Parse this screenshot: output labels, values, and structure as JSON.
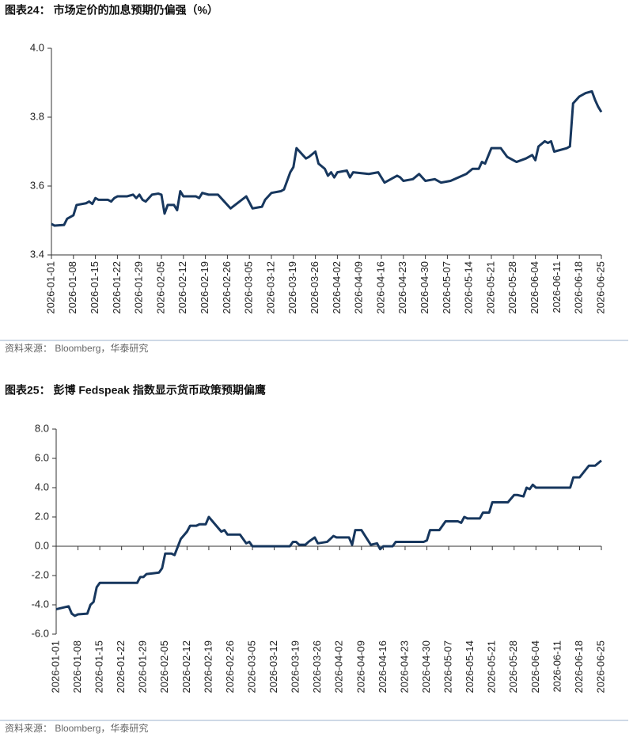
{
  "chart_data": [
    {
      "type": "line",
      "title": "图表24：  市场定价的加息预期仍偏强（%）",
      "source": "资料来源：  Bloomberg，华泰研究",
      "x": [
        "2026-01-01",
        "2026-01-02",
        "2026-01-05",
        "2026-01-06",
        "2026-01-08",
        "2026-01-09",
        "2026-01-12",
        "2026-01-13",
        "2026-01-14",
        "2026-01-15",
        "2026-01-16",
        "2026-01-19",
        "2026-01-20",
        "2026-01-21",
        "2026-01-22",
        "2026-01-25",
        "2026-01-27",
        "2026-01-28",
        "2026-01-29",
        "2026-01-30",
        "2026-01-31",
        "2026-02-02",
        "2026-02-04",
        "2026-02-05",
        "2026-02-06",
        "2026-02-07",
        "2026-02-09",
        "2026-02-10",
        "2026-02-11",
        "2026-02-12",
        "2026-02-16",
        "2026-02-17",
        "2026-02-18",
        "2026-02-20",
        "2026-02-23",
        "2026-02-25",
        "2026-02-27",
        "2026-03-04",
        "2026-03-06",
        "2026-03-09",
        "2026-03-10",
        "2026-03-12",
        "2026-03-15",
        "2026-03-16",
        "2026-03-18",
        "2026-03-19",
        "2026-03-20",
        "2026-03-22",
        "2026-03-23",
        "2026-03-24",
        "2026-03-26",
        "2026-03-27",
        "2026-03-29",
        "2026-03-30",
        "2026-03-31",
        "2026-04-01",
        "2026-04-02",
        "2026-04-05",
        "2026-04-06",
        "2026-04-07",
        "2026-04-12",
        "2026-04-15",
        "2026-04-17",
        "2026-04-21",
        "2026-04-22",
        "2026-04-23",
        "2026-04-26",
        "2026-04-28",
        "2026-04-30",
        "2026-05-03",
        "2026-05-05",
        "2026-05-08",
        "2026-05-13",
        "2026-05-15",
        "2026-05-17",
        "2026-05-18",
        "2026-05-19",
        "2026-05-21",
        "2026-05-24",
        "2026-05-26",
        "2026-05-28",
        "2026-05-29",
        "2026-06-01",
        "2026-06-03",
        "2026-06-04",
        "2026-06-05",
        "2026-06-07",
        "2026-06-08",
        "2026-06-09",
        "2026-06-10",
        "2026-06-14",
        "2026-06-15",
        "2026-06-16",
        "2026-06-18",
        "2026-06-20",
        "2026-06-22",
        "2026-06-23",
        "2026-06-24",
        "2026-06-25"
      ],
      "values": [
        3.49,
        3.485,
        3.487,
        3.505,
        3.515,
        3.545,
        3.55,
        3.555,
        3.548,
        3.565,
        3.56,
        3.56,
        3.555,
        3.565,
        3.57,
        3.57,
        3.575,
        3.565,
        3.575,
        3.56,
        3.555,
        3.575,
        3.578,
        3.575,
        3.52,
        3.545,
        3.545,
        3.53,
        3.585,
        3.57,
        3.57,
        3.565,
        3.58,
        3.575,
        3.575,
        3.555,
        3.535,
        3.57,
        3.535,
        3.54,
        3.56,
        3.58,
        3.585,
        3.59,
        3.64,
        3.655,
        3.71,
        3.69,
        3.68,
        3.685,
        3.7,
        3.665,
        3.65,
        3.63,
        3.64,
        3.625,
        3.64,
        3.645,
        3.625,
        3.64,
        3.635,
        3.64,
        3.61,
        3.63,
        3.625,
        3.615,
        3.62,
        3.635,
        3.615,
        3.62,
        3.61,
        3.615,
        3.635,
        3.65,
        3.65,
        3.67,
        3.665,
        3.71,
        3.71,
        3.685,
        3.675,
        3.67,
        3.68,
        3.69,
        3.675,
        3.715,
        3.73,
        3.725,
        3.73,
        3.7,
        3.71,
        3.715,
        3.84,
        3.86,
        3.87,
        3.875,
        3.85,
        3.83,
        3.815
      ],
      "color": "#17375e",
      "xlim": [
        "2026-01-01",
        "2026-06-25"
      ],
      "xticks": [
        "2026-01-01",
        "2026-01-08",
        "2026-01-15",
        "2026-01-22",
        "2026-01-29",
        "2026-02-05",
        "2026-02-12",
        "2026-02-19",
        "2026-02-26",
        "2026-03-05",
        "2026-03-12",
        "2026-03-19",
        "2026-03-26",
        "2026-04-02",
        "2026-04-09",
        "2026-04-16",
        "2026-04-23",
        "2026-04-30",
        "2026-05-07",
        "2026-05-14",
        "2026-05-21",
        "2026-05-28",
        "2026-06-04",
        "2026-06-11",
        "2026-06-18",
        "2026-06-25"
      ],
      "ylim": [
        3.4,
        4.0
      ],
      "yticks": [
        {
          "value": 3.4,
          "label": "3.4"
        },
        {
          "value": 3.6,
          "label": "3.6"
        },
        {
          "value": 3.8,
          "label": "3.8"
        },
        {
          "value": 4.0,
          "label": "4.0"
        }
      ]
    },
    {
      "type": "line",
      "title": "图表25：  彭博 Fedspeak 指数显示货币政策预期偏鹰",
      "source": "资料来源：  Bloomberg，华泰研究",
      "x": [
        "2026-01-01",
        "2026-01-05",
        "2026-01-06",
        "2026-01-07",
        "2026-01-08",
        "2026-01-11",
        "2026-01-12",
        "2026-01-13",
        "2026-01-14",
        "2026-01-15",
        "2026-01-27",
        "2026-01-28",
        "2026-01-29",
        "2026-01-30",
        "2026-02-01",
        "2026-02-03",
        "2026-02-04",
        "2026-02-05",
        "2026-02-07",
        "2026-02-08",
        "2026-02-10",
        "2026-02-12",
        "2026-02-13",
        "2026-02-15",
        "2026-02-16",
        "2026-02-18",
        "2026-02-19",
        "2026-02-21",
        "2026-02-23",
        "2026-02-24",
        "2026-02-25",
        "2026-03-01",
        "2026-03-03",
        "2026-03-04",
        "2026-03-05",
        "2026-03-17",
        "2026-03-18",
        "2026-03-19",
        "2026-03-20",
        "2026-03-22",
        "2026-03-23",
        "2026-03-25",
        "2026-03-26",
        "2026-03-29",
        "2026-03-31",
        "2026-04-01",
        "2026-04-05",
        "2026-04-06",
        "2026-04-07",
        "2026-04-09",
        "2026-04-12",
        "2026-04-14",
        "2026-04-15",
        "2026-04-16",
        "2026-04-19",
        "2026-04-20",
        "2026-04-29",
        "2026-04-30",
        "2026-05-01",
        "2026-05-04",
        "2026-05-06",
        "2026-05-10",
        "2026-05-11",
        "2026-05-12",
        "2026-05-13",
        "2026-05-17",
        "2026-05-18",
        "2026-05-20",
        "2026-05-21",
        "2026-05-26",
        "2026-05-28",
        "2026-05-29",
        "2026-05-31",
        "2026-06-01",
        "2026-06-02",
        "2026-06-03",
        "2026-06-04",
        "2026-06-15",
        "2026-06-16",
        "2026-06-18",
        "2026-06-21",
        "2026-06-23",
        "2026-06-25"
      ],
      "values": [
        -4.3,
        -4.1,
        -4.6,
        -4.75,
        -4.65,
        -4.6,
        -4.0,
        -3.8,
        -2.8,
        -2.5,
        -2.5,
        -2.1,
        -2.1,
        -1.9,
        -1.85,
        -1.8,
        -1.5,
        -0.5,
        -0.5,
        -0.6,
        0.5,
        1.0,
        1.4,
        1.4,
        1.5,
        1.5,
        2.0,
        1.5,
        1.0,
        1.1,
        0.8,
        0.8,
        0.2,
        0.3,
        0.0,
        0.0,
        0.3,
        0.3,
        0.1,
        0.1,
        0.3,
        0.6,
        0.2,
        0.3,
        0.7,
        0.6,
        0.6,
        0.1,
        1.1,
        1.1,
        0.1,
        0.2,
        -0.2,
        0.0,
        0.0,
        0.3,
        0.3,
        0.4,
        1.1,
        1.1,
        1.7,
        1.7,
        1.6,
        2.0,
        1.9,
        1.9,
        2.3,
        2.3,
        3.0,
        3.0,
        3.5,
        3.5,
        3.4,
        4.0,
        3.9,
        4.2,
        4.0,
        4.0,
        4.7,
        4.7,
        5.5,
        5.5,
        5.85
      ],
      "color": "#17375e",
      "xlim": [
        "2026-01-01",
        "2026-06-25"
      ],
      "xticks": [
        "2026-01-01",
        "2026-01-08",
        "2026-01-15",
        "2026-01-22",
        "2026-01-29",
        "2026-02-05",
        "2026-02-12",
        "2026-02-19",
        "2026-02-26",
        "2026-03-05",
        "2026-03-12",
        "2026-03-19",
        "2026-03-26",
        "2026-04-02",
        "2026-04-09",
        "2026-04-16",
        "2026-04-23",
        "2026-04-30",
        "2026-05-07",
        "2026-05-14",
        "2026-05-21",
        "2026-05-28",
        "2026-06-04",
        "2026-06-11",
        "2026-06-18",
        "2026-06-25"
      ],
      "ylim": [
        -6,
        8
      ],
      "yticks": [
        {
          "value": -6,
          "label": "-6.0"
        },
        {
          "value": -4,
          "label": "-4.0"
        },
        {
          "value": -2,
          "label": "-2.0"
        },
        {
          "value": 0,
          "label": "0.0"
        },
        {
          "value": 2,
          "label": "2.0"
        },
        {
          "value": 4,
          "label": "4.0"
        },
        {
          "value": 6,
          "label": "6.0"
        },
        {
          "value": 8,
          "label": "8.0"
        }
      ]
    }
  ]
}
